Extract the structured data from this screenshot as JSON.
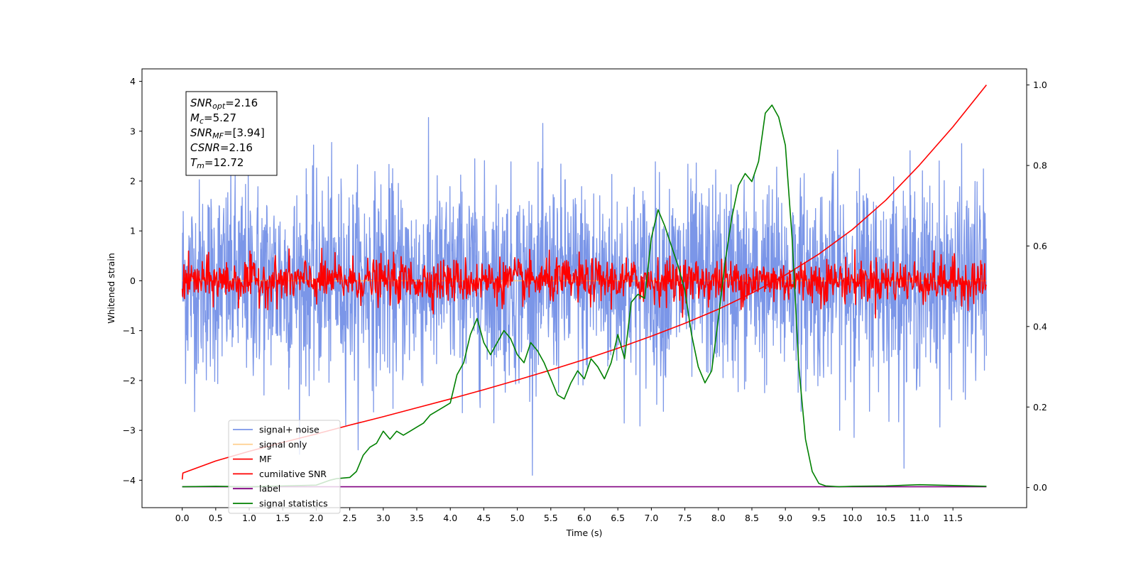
{
  "chart_data": {
    "type": "line",
    "xlabel": "Time (s)",
    "ylabel": "Whitened strain",
    "xlim": [
      -0.6,
      12.6
    ],
    "ylim_left": [
      -4.55,
      4.25
    ],
    "ylim_right": [
      -0.05,
      1.04
    ],
    "x_ticks": [
      0.0,
      0.5,
      1.0,
      1.5,
      2.0,
      2.5,
      3.0,
      3.5,
      4.0,
      4.5,
      5.0,
      5.5,
      6.0,
      6.5,
      7.0,
      7.5,
      8.0,
      8.5,
      9.0,
      9.5,
      10.0,
      10.5,
      11.0,
      11.5
    ],
    "x_tick_labels": [
      "0.0",
      "0.5",
      "1.0",
      "1.5",
      "2.0",
      "2.5",
      "3.0",
      "3.5",
      "4.0",
      "4.5",
      "5.0",
      "5.5",
      "6.0",
      "6.5",
      "7.0",
      "7.5",
      "8.0",
      "8.5",
      "9.0",
      "9.5",
      "10.0",
      "10.5",
      "11.0",
      "11.5"
    ],
    "y_ticks_left": [
      -4,
      -3,
      -2,
      -1,
      0,
      1,
      2,
      3,
      4
    ],
    "y_tick_labels_left": [
      "−4",
      "−3",
      "−2",
      "−1",
      "0",
      "1",
      "2",
      "3",
      "4"
    ],
    "y_ticks_right": [
      0.0,
      0.2,
      0.4,
      0.6,
      0.8,
      1.0
    ],
    "y_tick_labels_right": [
      "0.0",
      "0.2",
      "0.4",
      "0.6",
      "0.8",
      "1.0"
    ],
    "legend_position": "lower-left",
    "grid": false,
    "series": [
      {
        "name": "signal+ noise",
        "axis": "left",
        "color": "#7b96e8",
        "style": "noise",
        "x_range": [
          0,
          12
        ],
        "amplitude": 1.0,
        "spike_max": 3.9
      },
      {
        "name": "signal only",
        "axis": "left",
        "color": "#ffc87a",
        "style": "flat",
        "x_range": [
          0,
          12
        ],
        "value": 0.0
      },
      {
        "name": "MF",
        "axis": "left",
        "color": "#ff0000",
        "style": "noise",
        "x_range": [
          0,
          12
        ],
        "amplitude": 0.22,
        "spike_max": 1.0
      },
      {
        "name": "cumilative SNR",
        "axis": "right",
        "color": "#ff0000",
        "style": "line",
        "x": [
          0.0,
          0.01,
          0.5,
          1.0,
          1.5,
          2.0,
          2.5,
          3.0,
          3.5,
          4.0,
          4.5,
          5.0,
          5.5,
          6.0,
          6.5,
          7.0,
          7.5,
          8.0,
          8.5,
          9.0,
          9.5,
          10.0,
          10.5,
          11.0,
          11.5,
          12.0
        ],
        "y": [
          0.02,
          0.036,
          0.066,
          0.09,
          0.112,
          0.133,
          0.155,
          0.176,
          0.198,
          0.22,
          0.243,
          0.267,
          0.292,
          0.318,
          0.346,
          0.376,
          0.408,
          0.443,
          0.483,
          0.528,
          0.58,
          0.641,
          0.714,
          0.801,
          0.896,
          1.0
        ]
      },
      {
        "name": "label",
        "axis": "right",
        "color": "#800080",
        "style": "line",
        "x": [
          0.0,
          12.0
        ],
        "y": [
          0.002,
          0.002
        ]
      },
      {
        "name": "signal statistics",
        "axis": "right",
        "color": "#008000",
        "style": "line",
        "x": [
          0.0,
          0.5,
          1.0,
          1.5,
          2.0,
          2.2,
          2.3,
          2.5,
          2.6,
          2.7,
          2.8,
          2.9,
          3.0,
          3.1,
          3.2,
          3.3,
          3.4,
          3.5,
          3.6,
          3.7,
          3.8,
          3.9,
          4.0,
          4.1,
          4.2,
          4.3,
          4.4,
          4.5,
          4.6,
          4.7,
          4.8,
          4.9,
          5.0,
          5.1,
          5.2,
          5.3,
          5.4,
          5.5,
          5.6,
          5.7,
          5.8,
          5.9,
          6.0,
          6.1,
          6.2,
          6.3,
          6.4,
          6.5,
          6.6,
          6.7,
          6.8,
          6.9,
          7.0,
          7.1,
          7.2,
          7.3,
          7.4,
          7.5,
          7.6,
          7.7,
          7.8,
          7.9,
          8.0,
          8.1,
          8.2,
          8.3,
          8.4,
          8.5,
          8.6,
          8.7,
          8.8,
          8.9,
          9.0,
          9.1,
          9.2,
          9.3,
          9.4,
          9.5,
          9.6,
          9.8,
          10.0,
          10.5,
          11.0,
          11.5,
          12.0
        ],
        "y": [
          0.002,
          0.003,
          0.002,
          0.004,
          0.006,
          0.018,
          0.022,
          0.025,
          0.04,
          0.08,
          0.1,
          0.11,
          0.14,
          0.12,
          0.14,
          0.13,
          0.14,
          0.15,
          0.16,
          0.18,
          0.19,
          0.2,
          0.21,
          0.28,
          0.31,
          0.38,
          0.42,
          0.36,
          0.33,
          0.36,
          0.39,
          0.37,
          0.33,
          0.31,
          0.36,
          0.34,
          0.31,
          0.27,
          0.23,
          0.22,
          0.26,
          0.29,
          0.27,
          0.32,
          0.3,
          0.27,
          0.31,
          0.38,
          0.32,
          0.46,
          0.48,
          0.47,
          0.62,
          0.69,
          0.65,
          0.6,
          0.55,
          0.49,
          0.38,
          0.3,
          0.26,
          0.29,
          0.42,
          0.56,
          0.67,
          0.75,
          0.78,
          0.76,
          0.81,
          0.93,
          0.95,
          0.92,
          0.85,
          0.62,
          0.3,
          0.12,
          0.04,
          0.01,
          0.004,
          0.002,
          0.003,
          0.004,
          0.007,
          0.005,
          0.003
        ]
      }
    ],
    "annotation": [
      {
        "label": "SNR",
        "sub": "opt",
        "value": "=2.16"
      },
      {
        "label": "M",
        "sub": "c",
        "value": "=5.27"
      },
      {
        "label": "SNR",
        "sub": "MF",
        "value": "=[3.94]"
      },
      {
        "label": "CSNR",
        "sub": "",
        "value": "=2.16"
      },
      {
        "label": "T",
        "sub": "m",
        "value": "=12.72"
      }
    ]
  }
}
